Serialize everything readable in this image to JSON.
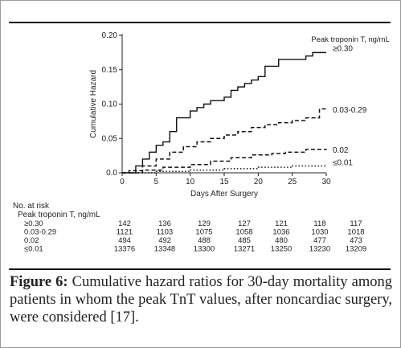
{
  "chart_data": {
    "type": "line",
    "xlabel": "Days After Surgery",
    "ylabel": "Cumulative Hazard",
    "legend_title": "Peak troponin T, ng/mL",
    "xlim": [
      0,
      30
    ],
    "ylim": [
      0,
      0.2
    ],
    "x_ticks": [
      "0",
      "5",
      "10",
      "15",
      "20",
      "25",
      "30"
    ],
    "y_ticks": [
      "0.0",
      "0.05",
      "0.10",
      "0.15",
      "0.20"
    ],
    "series": [
      {
        "name": "≥0.30",
        "style": "solid",
        "x": [
          0,
          2,
          3,
          4,
          5,
          6,
          7,
          8,
          10,
          11,
          12,
          13,
          14,
          15,
          16,
          17,
          18,
          19,
          20,
          21,
          23,
          27,
          28,
          30
        ],
        "y": [
          0,
          0.01,
          0.02,
          0.03,
          0.04,
          0.045,
          0.06,
          0.08,
          0.09,
          0.095,
          0.1,
          0.105,
          0.105,
          0.11,
          0.12,
          0.125,
          0.13,
          0.135,
          0.14,
          0.155,
          0.165,
          0.17,
          0.175,
          0.175
        ]
      },
      {
        "name": "0.03-0.29",
        "style": "dashed",
        "x": [
          0,
          1,
          3,
          5,
          7,
          9,
          11,
          13,
          15,
          17,
          19,
          21,
          23,
          25,
          27,
          29,
          30
        ],
        "y": [
          0,
          0.003,
          0.01,
          0.02,
          0.03,
          0.038,
          0.045,
          0.05,
          0.055,
          0.06,
          0.066,
          0.07,
          0.073,
          0.076,
          0.08,
          0.093,
          0.095
        ]
      },
      {
        "name": "0.02",
        "style": "dashed",
        "x": [
          0,
          3,
          6,
          10,
          13,
          16,
          19,
          22,
          24,
          27,
          30
        ],
        "y": [
          0,
          0.004,
          0.008,
          0.012,
          0.017,
          0.022,
          0.026,
          0.028,
          0.03,
          0.034,
          0.035
        ]
      },
      {
        "name": "≤0.01",
        "style": "dotted",
        "x": [
          0,
          5,
          10,
          15,
          20,
          25,
          30
        ],
        "y": [
          0,
          0.002,
          0.004,
          0.006,
          0.008,
          0.01,
          0.012
        ]
      }
    ],
    "risk_table": {
      "title": "No. at risk",
      "subtitle": "Peak troponin T, ng/mL",
      "columns": [
        "0",
        "5",
        "10",
        "15",
        "20",
        "25",
        "30"
      ],
      "rows": [
        {
          "label": "≥0.30",
          "values": [
            "142",
            "136",
            "129",
            "127",
            "121",
            "118",
            "117"
          ]
        },
        {
          "label": "0.03-0.29",
          "values": [
            "1121",
            "1103",
            "1075",
            "1058",
            "1036",
            "1030",
            "1018"
          ]
        },
        {
          "label": "0.02",
          "values": [
            "494",
            "492",
            "488",
            "485",
            "480",
            "477",
            "473"
          ]
        },
        {
          "label": "≤0.01",
          "values": [
            "13376",
            "13348",
            "13300",
            "13271",
            "13250",
            "13230",
            "13209"
          ]
        }
      ]
    }
  },
  "caption": {
    "label": "Figure 6:",
    "text": " Cumulative hazard ratios for 30-day mortality among patients in whom the peak TnT values, after noncardiac surgery, were considered [17]."
  }
}
